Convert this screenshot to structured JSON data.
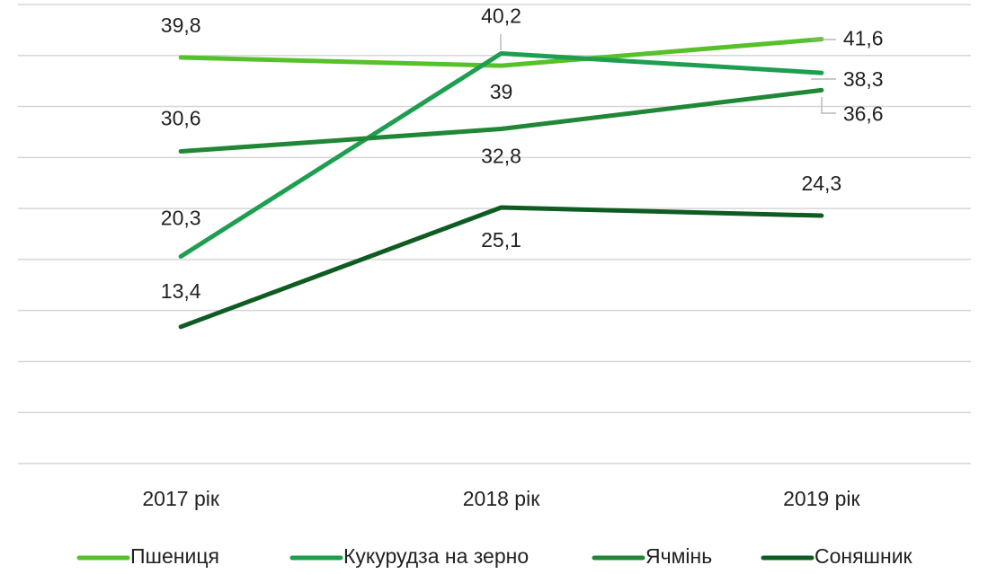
{
  "chart_data": {
    "type": "line",
    "categories": [
      "2017 рік",
      "2018 рік",
      "2019 рік"
    ],
    "series": [
      {
        "name": "Пшениця",
        "color": "#57c12b",
        "values": [
          39.8,
          39,
          41.6
        ],
        "value_labels": [
          "39,8",
          "39",
          "41,6"
        ]
      },
      {
        "name": "Кукурудза на зерно",
        "color": "#1e9e50",
        "values": [
          20.3,
          40.2,
          38.3
        ],
        "value_labels": [
          "20,3",
          "40,2",
          "38,3"
        ]
      },
      {
        "name": "Ячмінь",
        "color": "#1f8736",
        "values": [
          30.6,
          32.8,
          36.6
        ],
        "value_labels": [
          "30,6",
          "32,8",
          "36,6"
        ]
      },
      {
        "name": "Соняшник",
        "color": "#0f5c22",
        "values": [
          13.4,
          25.1,
          24.3
        ],
        "value_labels": [
          "13,4",
          "25,1",
          "24,3"
        ]
      }
    ],
    "ylim": [
      0,
      45
    ],
    "yticks": [
      0,
      5,
      10,
      15,
      20,
      25,
      30,
      35,
      40,
      45
    ],
    "grid": true,
    "legend": "bottom"
  }
}
